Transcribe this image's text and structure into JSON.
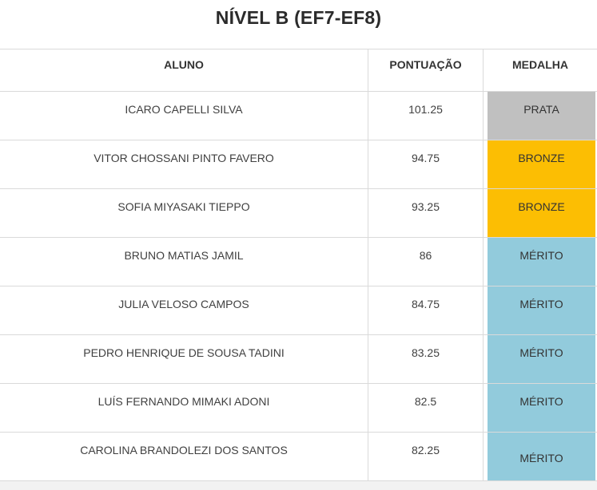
{
  "title": "NÍVEL B (EF7-EF8)",
  "table": {
    "headers": {
      "student": "ALUNO",
      "score": "PONTUAÇÃO",
      "medal": "MEDALHA"
    },
    "rows": [
      {
        "name": "ICARO CAPELLI SILVA",
        "score": "101.25",
        "medal": "PRATA",
        "medal_type": "prata"
      },
      {
        "name": "VITOR CHOSSANI PINTO FAVERO",
        "score": "94.75",
        "medal": "BRONZE",
        "medal_type": "bronze"
      },
      {
        "name": "SOFIA MIYASAKI TIEPPO",
        "score": "93.25",
        "medal": "BRONZE",
        "medal_type": "bronze"
      },
      {
        "name": "BRUNO MATIAS JAMIL",
        "score": "86",
        "medal": "MÉRITO",
        "medal_type": "merito"
      },
      {
        "name": "JULIA VELOSO CAMPOS",
        "score": "84.75",
        "medal": "MÉRITO",
        "medal_type": "merito"
      },
      {
        "name": "PEDRO HENRIQUE DE SOUSA TADINI",
        "score": "83.25",
        "medal": "MÉRITO",
        "medal_type": "merito"
      },
      {
        "name": "LUÍS FERNANDO MIMAKI ADONI",
        "score": "82.5",
        "medal": "MÉRITO",
        "medal_type": "merito"
      },
      {
        "name": "CAROLINA BRANDOLEZI DOS SANTOS",
        "score": "82.25",
        "medal": "MÉRITO",
        "medal_type": "merito"
      }
    ]
  },
  "colors": {
    "prata": "#C0C0C0",
    "bronze": "#FCBE03",
    "merito": "#92CBDC",
    "border": "#DADADA",
    "footer_strip": "#F2F2F2"
  },
  "chart_data": {
    "type": "table",
    "title": "NÍVEL B (EF7-EF8)",
    "columns": [
      "ALUNO",
      "PONTUAÇÃO",
      "MEDALHA"
    ],
    "rows": [
      [
        "ICARO CAPELLI SILVA",
        101.25,
        "PRATA"
      ],
      [
        "VITOR CHOSSANI PINTO FAVERO",
        94.75,
        "BRONZE"
      ],
      [
        "SOFIA MIYASAKI TIEPPO",
        93.25,
        "BRONZE"
      ],
      [
        "BRUNO MATIAS JAMIL",
        86,
        "MÉRITO"
      ],
      [
        "JULIA VELOSO CAMPOS",
        84.75,
        "MÉRITO"
      ],
      [
        "PEDRO HENRIQUE DE SOUSA TADINI",
        83.25,
        "MÉRITO"
      ],
      [
        "LUÍS FERNANDO MIMAKI ADONI",
        82.5,
        "MÉRITO"
      ],
      [
        "CAROLINA BRANDOLEZI DOS SANTOS",
        82.25,
        "MÉRITO"
      ]
    ]
  }
}
